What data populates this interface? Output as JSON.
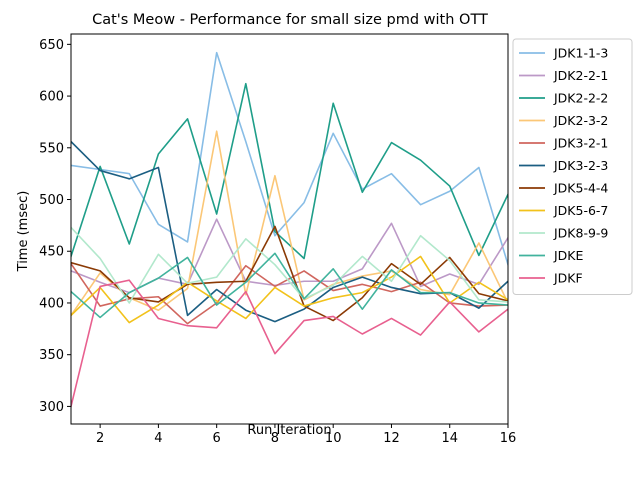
{
  "chart_data": {
    "type": "line",
    "title": "Cat's Meow - Performance for small size pmd with OTT",
    "xlabel": "Run Iteration",
    "ylabel": "Time (msec)",
    "xlim": [
      1,
      16
    ],
    "ylim": [
      283,
      660
    ],
    "x": [
      1,
      2,
      3,
      4,
      5,
      6,
      7,
      8,
      9,
      10,
      11,
      12,
      13,
      14,
      15,
      16
    ],
    "x_ticks": [
      2,
      4,
      6,
      8,
      10,
      12,
      14,
      16
    ],
    "y_ticks": [
      300,
      350,
      400,
      450,
      500,
      550,
      600,
      650
    ],
    "grid": false,
    "legend_position": "outside-right",
    "series": [
      {
        "name": "JDK1-1-3",
        "color": "#88bde6",
        "values": [
          533,
          529,
          525,
          476,
          459,
          642,
          556,
          465,
          497,
          564,
          510,
          525,
          495,
          508,
          531,
          437
        ]
      },
      {
        "name": "JDK2-2-1",
        "color": "#bc99c7",
        "values": [
          431,
          420,
          410,
          424,
          418,
          481,
          421,
          417,
          421,
          421,
          433,
          477,
          416,
          428,
          418,
          463
        ]
      },
      {
        "name": "JDK2-2-2",
        "color": "#1f9e89",
        "values": [
          445,
          532,
          457,
          544,
          578,
          486,
          612,
          469,
          443,
          593,
          507,
          555,
          538,
          513,
          446,
          505
        ]
      },
      {
        "name": "JDK2-3-2",
        "color": "#fbc777",
        "values": [
          388,
          429,
          405,
          393,
          414,
          566,
          408,
          523,
          403,
          418,
          426,
          431,
          413,
          408,
          458,
          400
        ]
      },
      {
        "name": "JDK3-2-1",
        "color": "#d0665e",
        "values": [
          438,
          397,
          404,
          406,
          380,
          400,
          436,
          416,
          431,
          412,
          418,
          411,
          420,
          400,
          397,
          398
        ]
      },
      {
        "name": "JDK3-2-3",
        "color": "#1b5e82",
        "values": [
          556,
          528,
          520,
          531,
          388,
          413,
          393,
          382,
          394,
          415,
          425,
          415,
          409,
          410,
          395,
          421
        ]
      },
      {
        "name": "JDK5-4-4",
        "color": "#8b3a05",
        "values": [
          439,
          431,
          405,
          401,
          418,
          420,
          421,
          474,
          397,
          383,
          405,
          438,
          418,
          444,
          409,
          402
        ]
      },
      {
        "name": "JDK5-6-7",
        "color": "#f2c21b",
        "values": [
          388,
          415,
          381,
          398,
          420,
          402,
          385,
          415,
          397,
          405,
          410,
          425,
          445,
          400,
          420,
          403
        ]
      },
      {
        "name": "JDK8-9-9",
        "color": "#b2e8cc",
        "values": [
          473,
          443,
          400,
          447,
          419,
          425,
          462,
          437,
          404,
          417,
          445,
          421,
          465,
          441,
          403,
          401
        ]
      },
      {
        "name": "JDKE",
        "color": "#41b39d",
        "values": [
          411,
          386,
          410,
          424,
          444,
          398,
          420,
          448,
          404,
          433,
          394,
          432,
          410,
          410,
          400,
          398
        ]
      },
      {
        "name": "JDKF",
        "color": "#e8608f",
        "values": [
          300,
          416,
          422,
          385,
          378,
          376,
          411,
          351,
          383,
          387,
          370,
          385,
          369,
          401,
          372,
          394
        ]
      }
    ]
  }
}
